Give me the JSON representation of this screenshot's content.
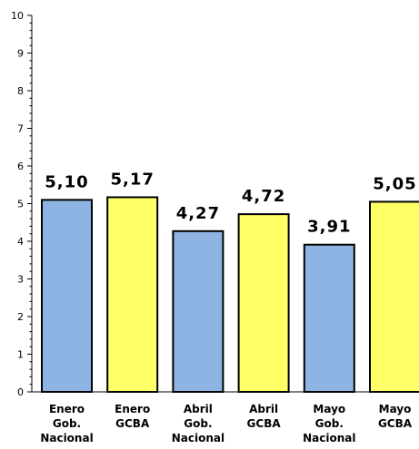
{
  "chart_data": {
    "type": "bar",
    "categories": [
      [
        "Enero",
        "Gob.",
        "Nacional"
      ],
      [
        "Enero",
        "GCBA"
      ],
      [
        "Abril",
        "Gob.",
        "Nacional"
      ],
      [
        "Abril",
        "GCBA"
      ],
      [
        "Mayo",
        "Gob.",
        "Nacional"
      ],
      [
        "Mayo",
        "GCBA"
      ]
    ],
    "values": [
      5.1,
      5.17,
      4.27,
      4.72,
      3.91,
      5.05
    ],
    "data_labels": [
      "5,10",
      "5,17",
      "4,27",
      "4,72",
      "3,91",
      "5,05"
    ],
    "bar_colors": [
      "#8EB4E3",
      "#FFFF66",
      "#8EB4E3",
      "#FFFF66",
      "#8EB4E3",
      "#FFFF66"
    ],
    "yticks": [
      0,
      1,
      2,
      3,
      4,
      5,
      6,
      7,
      8,
      9,
      10
    ],
    "ylim": [
      0,
      10
    ],
    "title": "",
    "xlabel": "",
    "ylabel": "",
    "grid": false,
    "legend": "none"
  }
}
